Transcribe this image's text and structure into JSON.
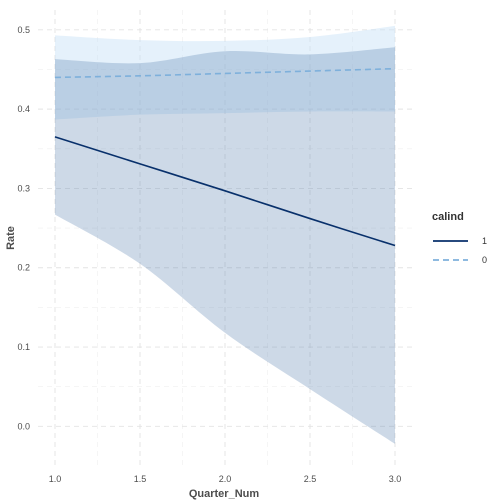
{
  "chart_data": {
    "type": "line",
    "title": "",
    "xlabel": "Quarter_Num",
    "ylabel": "Rate",
    "xlim": [
      0.9,
      3.1
    ],
    "ylim": [
      -0.05,
      0.525
    ],
    "x_ticks": [
      "1.0",
      "1.5",
      "2.0",
      "2.5",
      "3.0"
    ],
    "y_ticks": [
      "0.0",
      "0.1",
      "0.2",
      "0.3",
      "0.4",
      "0.5"
    ],
    "grid": true,
    "legend": {
      "title": "calind",
      "placement": "right",
      "entries": [
        "1",
        "0"
      ]
    },
    "series": [
      {
        "name": "1",
        "color": "#08306b",
        "dash": "solid",
        "x": [
          1.0,
          1.5,
          2.0,
          2.5,
          3.0
        ],
        "y": [
          0.365,
          0.331,
          0.297,
          0.262,
          0.228
        ],
        "ci_lower": [
          0.267,
          0.205,
          0.118,
          0.047,
          -0.022
        ],
        "ci_upper": [
          0.463,
          0.458,
          0.473,
          0.469,
          0.478
        ],
        "ci_color": "#4a76a8"
      },
      {
        "name": "0",
        "color": "#7eb0db",
        "dash": "dashed",
        "x": [
          1.0,
          1.5,
          2.0,
          2.5,
          3.0
        ],
        "y": [
          0.44,
          0.442,
          0.445,
          0.448,
          0.451
        ],
        "ci_lower": [
          0.387,
          0.393,
          0.395,
          0.397,
          0.397
        ],
        "ci_upper": [
          0.493,
          0.487,
          0.486,
          0.491,
          0.505
        ],
        "ci_color": "#c6e0f7"
      }
    ]
  }
}
